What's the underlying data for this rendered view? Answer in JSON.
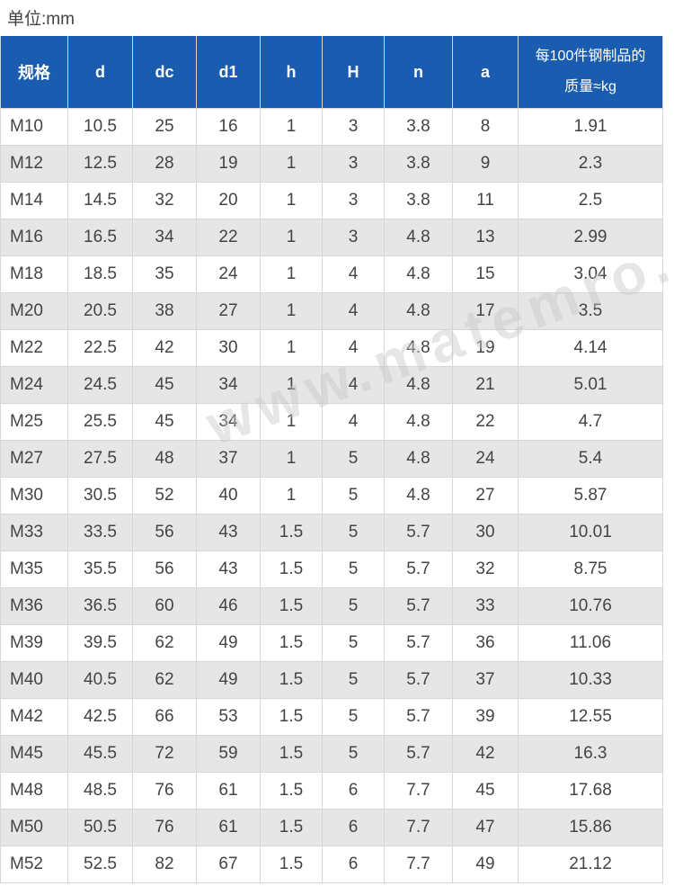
{
  "unit_label": "单位:mm",
  "watermark": "www.matemro.com",
  "colors": {
    "header_bg": "#1a5caf",
    "header_text": "#ffffff",
    "alt_row": "#e6e6e6"
  },
  "table": {
    "headers": [
      "规格",
      "d",
      "dc",
      "d1",
      "h",
      "H",
      "n",
      "a",
      "每100件钢制品的质量≈kg"
    ],
    "rows": [
      [
        "M10",
        "10.5",
        "25",
        "16",
        "1",
        "3",
        "3.8",
        "8",
        "1.91"
      ],
      [
        "M12",
        "12.5",
        "28",
        "19",
        "1",
        "3",
        "3.8",
        "9",
        "2.3"
      ],
      [
        "M14",
        "14.5",
        "32",
        "20",
        "1",
        "3",
        "3.8",
        "11",
        "2.5"
      ],
      [
        "M16",
        "16.5",
        "34",
        "22",
        "1",
        "3",
        "4.8",
        "13",
        "2.99"
      ],
      [
        "M18",
        "18.5",
        "35",
        "24",
        "1",
        "4",
        "4.8",
        "15",
        "3.04"
      ],
      [
        "M20",
        "20.5",
        "38",
        "27",
        "1",
        "4",
        "4.8",
        "17",
        "3.5"
      ],
      [
        "M22",
        "22.5",
        "42",
        "30",
        "1",
        "4",
        "4.8",
        "19",
        "4.14"
      ],
      [
        "M24",
        "24.5",
        "45",
        "34",
        "1",
        "4",
        "4.8",
        "21",
        "5.01"
      ],
      [
        "M25",
        "25.5",
        "45",
        "34",
        "1",
        "4",
        "4.8",
        "22",
        "4.7"
      ],
      [
        "M27",
        "27.5",
        "48",
        "37",
        "1",
        "5",
        "4.8",
        "24",
        "5.4"
      ],
      [
        "M30",
        "30.5",
        "52",
        "40",
        "1",
        "5",
        "4.8",
        "27",
        "5.87"
      ],
      [
        "M33",
        "33.5",
        "56",
        "43",
        "1.5",
        "5",
        "5.7",
        "30",
        "10.01"
      ],
      [
        "M35",
        "35.5",
        "56",
        "43",
        "1.5",
        "5",
        "5.7",
        "32",
        "8.75"
      ],
      [
        "M36",
        "36.5",
        "60",
        "46",
        "1.5",
        "5",
        "5.7",
        "33",
        "10.76"
      ],
      [
        "M39",
        "39.5",
        "62",
        "49",
        "1.5",
        "5",
        "5.7",
        "36",
        "11.06"
      ],
      [
        "M40",
        "40.5",
        "62",
        "49",
        "1.5",
        "5",
        "5.7",
        "37",
        "10.33"
      ],
      [
        "M42",
        "42.5",
        "66",
        "53",
        "1.5",
        "5",
        "5.7",
        "39",
        "12.55"
      ],
      [
        "M45",
        "45.5",
        "72",
        "59",
        "1.5",
        "5",
        "5.7",
        "42",
        "16.3"
      ],
      [
        "M48",
        "48.5",
        "76",
        "61",
        "1.5",
        "6",
        "7.7",
        "45",
        "17.68"
      ],
      [
        "M50",
        "50.5",
        "76",
        "61",
        "1.5",
        "6",
        "7.7",
        "47",
        "15.86"
      ],
      [
        "M52",
        "52.5",
        "82",
        "67",
        "1.5",
        "6",
        "7.7",
        "49",
        "21.12"
      ]
    ]
  }
}
